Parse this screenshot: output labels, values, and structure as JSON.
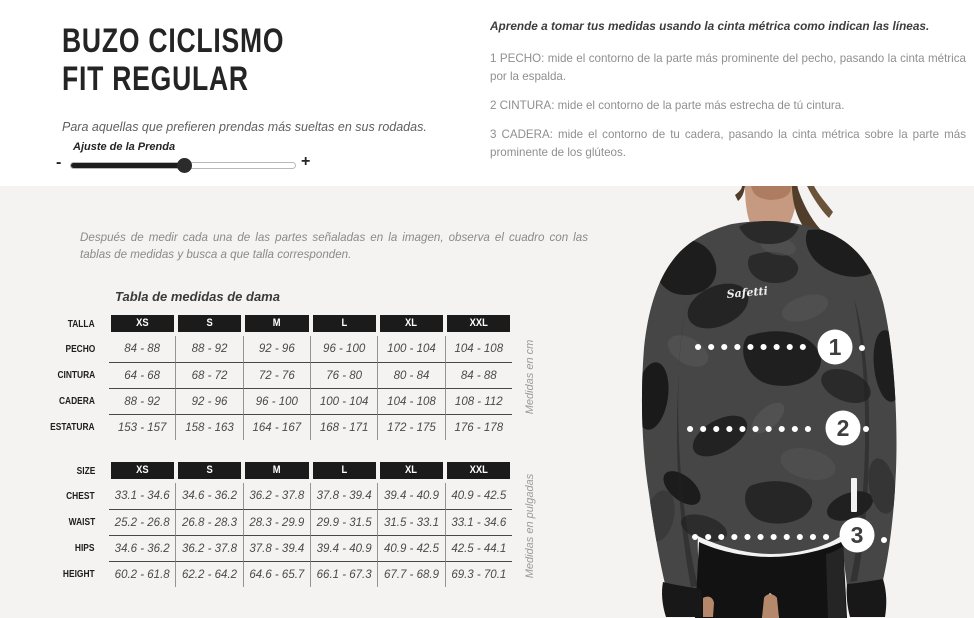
{
  "page": {
    "title_line1": "BUZO CICLISMO",
    "title_line2": "FIT REGULAR",
    "subtitle": "Para aquellas que prefieren prendas más sueltas en sus rodadas."
  },
  "slider": {
    "label": "Ajuste de la Prenda",
    "min_symbol": "-",
    "max_symbol": "+",
    "value_pct": 51
  },
  "instructions": {
    "lead": "Aprende a tomar tus medidas usando la cinta métrica como indican las líneas.",
    "steps": [
      "1 PECHO: mide el contorno de la parte más prominente del pecho, pasando la cinta métrica por la espalda.",
      "2 CINTURA: mide el contorno de la parte más estrecha de tú cintura.",
      "3 CADERA: mide el contorno de tu cadera, pasando la cinta métrica sobre la parte más prominente de los glúteos."
    ]
  },
  "note": "Después de medir cada una de las partes señaladas en la imagen, observa el cuadro con las tablas de medidas y busca a que talla corresponden.",
  "tables_caption": "Tabla de medidas de dama",
  "tables": [
    {
      "side_label": "Medidas en cm",
      "header": {
        "label": "TALLA",
        "cells": [
          "XS",
          "S",
          "M",
          "L",
          "XL",
          "XXL"
        ]
      },
      "rows": [
        {
          "label": "PECHO",
          "cells": [
            "84 - 88",
            "88 - 92",
            "92 - 96",
            "96 - 100",
            "100 - 104",
            "104 - 108"
          ]
        },
        {
          "label": "CINTURA",
          "cells": [
            "64 - 68",
            "68 - 72",
            "72 - 76",
            "76 - 80",
            "80 - 84",
            "84 - 88"
          ]
        },
        {
          "label": "CADERA",
          "cells": [
            "88 - 92",
            "92 - 96",
            "96 - 100",
            "100 - 104",
            "104 - 108",
            "108 - 112"
          ]
        },
        {
          "label": "ESTATURA",
          "cells": [
            "153 - 157",
            "158 - 163",
            "164 - 167",
            "168 - 171",
            "172 - 175",
            "176 - 178"
          ]
        }
      ]
    },
    {
      "side_label": "Medidas en pulgadas",
      "header": {
        "label": "SIZE",
        "cells": [
          "XS",
          "S",
          "M",
          "L",
          "XL",
          "XXL"
        ]
      },
      "rows": [
        {
          "label": "CHEST",
          "cells": [
            "33.1 - 34.6",
            "34.6 - 36.2",
            "36.2 - 37.8",
            "37.8 - 39.4",
            "39.4 - 40.9",
            "40.9 - 42.5"
          ]
        },
        {
          "label": "WAIST",
          "cells": [
            "25.2 - 26.8",
            "26.8 - 28.3",
            "28.3 - 29.9",
            "29.9 - 31.5",
            "31.5 - 33.1",
            "33.1 - 34.6"
          ]
        },
        {
          "label": "HIPS",
          "cells": [
            "34.6 - 36.2",
            "36.2 - 37.8",
            "37.8 - 39.4",
            "39.4 - 40.9",
            "40.9 - 42.5",
            "42.5 - 44.1"
          ]
        },
        {
          "label": "HEIGHT",
          "cells": [
            "60.2 - 61.8",
            "62.2 - 64.2",
            "64.6 - 65.7",
            "66.1 - 67.3",
            "67.7 - 68.9",
            "69.3 - 70.1"
          ]
        }
      ]
    }
  ],
  "photo": {
    "brand": "Safetti",
    "markers": [
      {
        "label": "1"
      },
      {
        "label": "2"
      },
      {
        "label": "3"
      }
    ]
  },
  "colors": {
    "table_header_bg": "#1b1b1b",
    "band_bg": "#f4f3f1",
    "measure_line": "#ffffff",
    "title_text": "#242424"
  }
}
